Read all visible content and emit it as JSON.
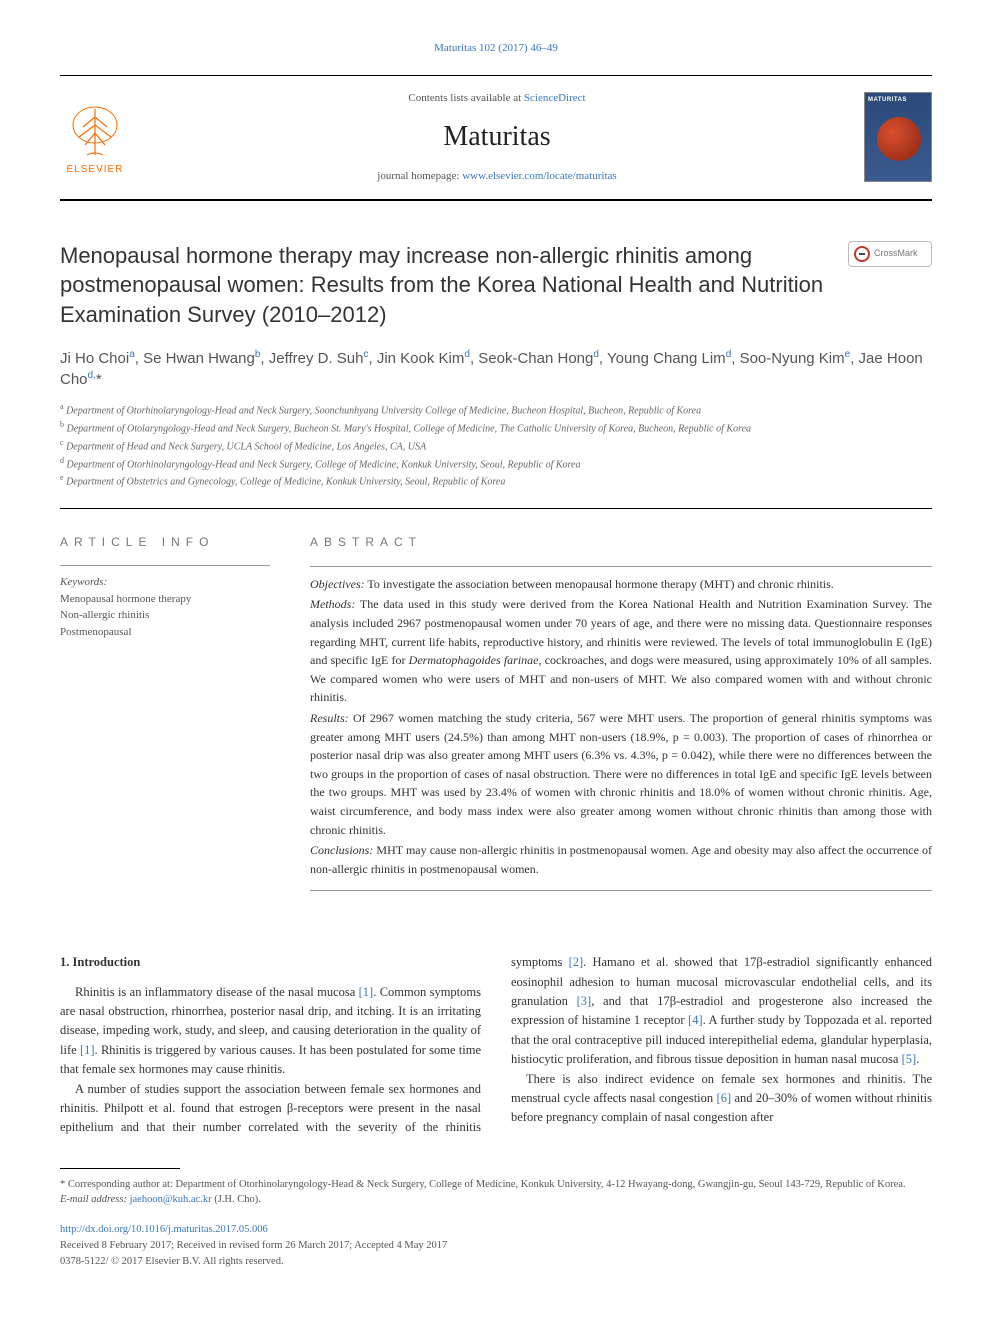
{
  "header": {
    "citation": "Maturitas 102 (2017) 46–49",
    "contents_prefix": "Contents lists available at ",
    "contents_link": "ScienceDirect",
    "journal_name": "Maturitas",
    "homepage_prefix": "journal homepage: ",
    "homepage_url": "www.elsevier.com/locate/maturitas",
    "elsevier_label": "ELSEVIER",
    "cover_title": "MATURITAS",
    "crossmark_label": "CrossMark"
  },
  "article": {
    "title": "Menopausal hormone therapy may increase non-allergic rhinitis among postmenopausal women: Results from the Korea National Health and Nutrition Examination Survey (2010–2012)",
    "authors_html": "Ji Ho Choi<sup>a</sup>, Se Hwan Hwang<sup>b</sup>, Jeffrey D. Suh<sup>c</sup>, Jin Kook Kim<sup>d</sup>, Seok-Chan Hong<sup>d</sup>, Young Chang Lim<sup>d</sup>, Soo-Nyung Kim<sup>e</sup>, Jae Hoon Cho<sup>d,</sup>*",
    "affiliations": [
      "a Department of Otorhinolaryngology-Head and Neck Surgery, Soonchunhyang University College of Medicine, Bucheon Hospital, Bucheon, Republic of Korea",
      "b Department of Otolaryngology-Head and Neck Surgery, Bucheon St. Mary's Hospital, College of Medicine, The Catholic University of Korea, Bucheon, Republic of Korea",
      "c Department of Head and Neck Surgery, UCLA School of Medicine, Los Angeles, CA, USA",
      "d Department of Otorhinolaryngology-Head and Neck Surgery, College of Medicine, Konkuk University, Seoul, Republic of Korea",
      "e Department of Obstetrics and Gynecology, College of Medicine, Konkuk University, Seoul, Republic of Korea"
    ]
  },
  "article_info": {
    "heading": "ARTICLE INFO",
    "keywords_label": "Keywords:",
    "keywords": [
      "Menopausal hormone therapy",
      "Non-allergic rhinitis",
      "Postmenopausal"
    ]
  },
  "abstract": {
    "heading": "ABSTRACT",
    "objectives_lead": "Objectives:",
    "objectives": " To investigate the association between menopausal hormone therapy (MHT) and chronic rhinitis.",
    "methods_lead": "Methods:",
    "methods": " The data used in this study were derived from the Korea National Health and Nutrition Examination Survey. The analysis included 2967 postmenopausal women under 70 years of age, and there were no missing data. Questionnaire responses regarding MHT, current life habits, reproductive history, and rhinitis were reviewed. The levels of total immunoglobulin E (IgE) and specific IgE for Dermatophagoides farinae, cockroaches, and dogs were measured, using approximately 10% of all samples. We compared women who were users of MHT and non-users of MHT. We also compared women with and without chronic rhinitis.",
    "results_lead": "Results:",
    "results": " Of 2967 women matching the study criteria, 567 were MHT users. The proportion of general rhinitis symptoms was greater among MHT users (24.5%) than among MHT non-users (18.9%, p = 0.003). The proportion of cases of rhinorrhea or posterior nasal drip was also greater among MHT users (6.3% vs. 4.3%, p = 0.042), while there were no differences between the two groups in the proportion of cases of nasal obstruction. There were no differences in total IgE and specific IgE levels between the two groups. MHT was used by 23.4% of women with chronic rhinitis and 18.0% of women without chronic rhinitis. Age, waist circumference, and body mass index were also greater among women without chronic rhinitis than among those with chronic rhinitis.",
    "conclusions_lead": "Conclusions:",
    "conclusions": " MHT may cause non-allergic rhinitis in postmenopausal women. Age and obesity may also affect the occurrence of non-allergic rhinitis in postmenopausal women."
  },
  "body": {
    "section_heading": "1. Introduction",
    "p1_a": "Rhinitis is an inflammatory disease of the nasal mucosa ",
    "p1_ref1": "[1]",
    "p1_b": ". Common symptoms are nasal obstruction, rhinorrhea, posterior nasal drip, and itching. It is an irritating disease, impeding work, study, and sleep, and causing deterioration in the quality of life ",
    "p1_ref2": "[1]",
    "p1_c": ". Rhinitis is triggered by various causes. It has been postulated for some time that female sex hormones may cause rhinitis.",
    "p2_a": "A number of studies support the association between female sex hormones and rhinitis. Philpott et al. found that estrogen β-receptors were present in the nasal epithelium and that their number correlated",
    "p2_b": "with the severity of the rhinitis symptoms ",
    "p2_ref1": "[2]",
    "p2_c": ". Hamano et al. showed that 17β-estradiol significantly enhanced eosinophil adhesion to human mucosal microvascular endothelial cells, and its granulation ",
    "p2_ref2": "[3]",
    "p2_d": ", and that 17β-estradiol and progesterone also increased the expression of histamine 1 receptor ",
    "p2_ref3": "[4]",
    "p2_e": ". A further study by Toppozada et al. reported that the oral contraceptive pill induced interepithelial edema, glandular hyperplasia, histiocytic proliferation, and fibrous tissue deposition in human nasal mucosa ",
    "p2_ref4": "[5]",
    "p2_f": ".",
    "p3_a": "There is also indirect evidence on female sex hormones and rhinitis. The menstrual cycle affects nasal congestion ",
    "p3_ref1": "[6]",
    "p3_b": " and 20–30% of women without rhinitis before pregnancy complain of nasal congestion after"
  },
  "footer": {
    "corresponding_star": "*",
    "corresponding_text": " Corresponding author at: Department of Otorhinolaryngology-Head & Neck Surgery, College of Medicine, Konkuk University, 4-12 Hwayang-dong, Gwangjin-gu, Seoul 143-729, Republic of Korea.",
    "email_label": "E-mail address: ",
    "email": "jaehoon@kuh.ac.kr",
    "email_suffix": " (J.H. Cho).",
    "doi": "http://dx.doi.org/10.1016/j.maturitas.2017.05.006",
    "received": "Received 8 February 2017; Received in revised form 26 March 2017; Accepted 4 May 2017",
    "issn": "0378-5122/ © 2017 Elsevier B.V. All rights reserved."
  },
  "colors": {
    "link": "#3a76b8",
    "elsevier_orange": "#ff6c00",
    "text_dark": "#333333",
    "text_muted": "#555555",
    "rule": "#000000"
  },
  "typography": {
    "title_fontsize": 22,
    "journal_name_fontsize": 28,
    "body_fontsize": 12.5,
    "abstract_fontsize": 12,
    "affil_fontsize": 10
  }
}
